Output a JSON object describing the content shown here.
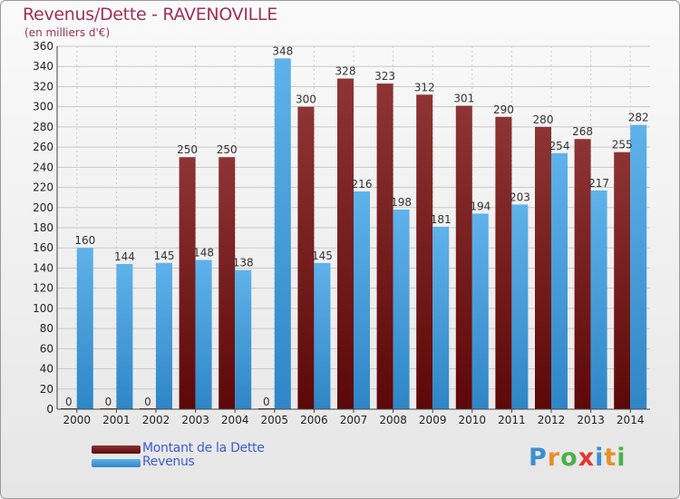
{
  "colors": {
    "title": "#a0305a",
    "dette": "#7a1e1e",
    "revenus": "#3a9ad9",
    "legend_text": "#3d5bd6"
  },
  "chart_data": {
    "type": "bar",
    "title": "Revenus/Dette - RAVENOVILLE",
    "subtitle": "(en milliers d'€)",
    "categories": [
      "2000",
      "2001",
      "2002",
      "2003",
      "2004",
      "2005",
      "2006",
      "2007",
      "2008",
      "2009",
      "2010",
      "2011",
      "2012",
      "2013",
      "2014"
    ],
    "series": [
      {
        "name": "Montant de la Dette",
        "values": [
          0,
          0,
          0,
          250,
          250,
          0,
          300,
          328,
          323,
          312,
          301,
          290,
          280,
          268,
          255
        ]
      },
      {
        "name": "Revenus",
        "values": [
          160,
          144,
          145,
          148,
          138,
          348,
          145,
          216,
          198,
          181,
          194,
          203,
          254,
          217,
          282
        ]
      }
    ],
    "ylim": [
      0,
      360
    ],
    "yticks": [
      0,
      20,
      40,
      60,
      80,
      100,
      120,
      140,
      160,
      180,
      200,
      220,
      240,
      260,
      280,
      300,
      320,
      340,
      360
    ],
    "grid": true,
    "legend": "bottom-left"
  },
  "logo": {
    "text": "Proxiti",
    "letters": [
      {
        "ch": "P",
        "color": "#3d8fd0"
      },
      {
        "ch": "r",
        "color": "#e8902a"
      },
      {
        "ch": "o",
        "color": "#4db04a"
      },
      {
        "ch": "x",
        "color": "#e3342f"
      },
      {
        "ch": "i",
        "color": "#3d8fd0"
      },
      {
        "ch": "t",
        "color": "#e8902a"
      },
      {
        "ch": "i",
        "color": "#4db04a"
      }
    ]
  }
}
